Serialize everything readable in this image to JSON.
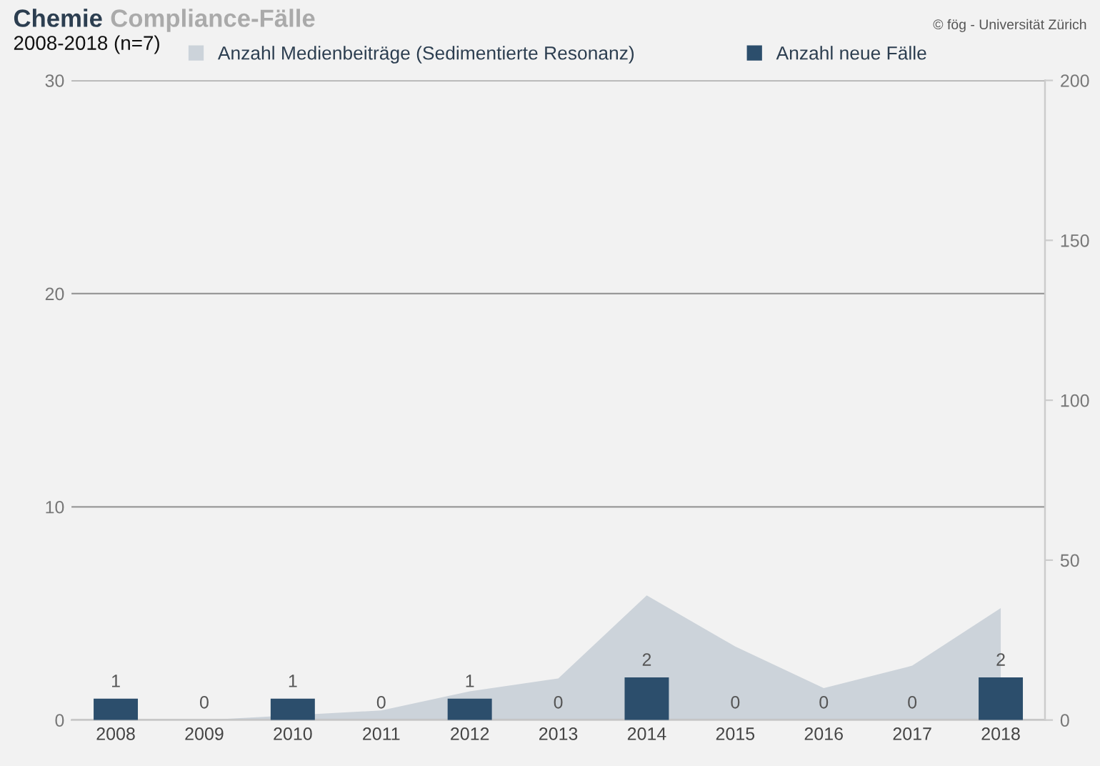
{
  "chart_data": {
    "type": "bar",
    "title": "Chemie Compliance-Fälle",
    "subtitle": "2008-2018 (n=7)",
    "annotations": [
      "© fög - Universität Zürich"
    ],
    "categories": [
      "2008",
      "2009",
      "2010",
      "2011",
      "2012",
      "2013",
      "2014",
      "2015",
      "2016",
      "2017",
      "2018"
    ],
    "series": [
      {
        "name": "Anzahl Medienbeiträge (Sedimentierte Resonanz)",
        "type": "area",
        "axis": "y2",
        "color": "#ccd3da",
        "values": [
          null,
          0,
          null,
          3,
          9,
          13,
          39,
          23,
          10,
          17,
          35
        ]
      },
      {
        "name": "Anzahl neue Fälle",
        "color": "#2c4e6c",
        "values": [
          1,
          0,
          1,
          0,
          1,
          0,
          2,
          0,
          0,
          0,
          2
        ],
        "value_labels": [
          "1",
          "0",
          "1",
          "0",
          "1",
          "0",
          "2",
          "0",
          "0",
          "0",
          "2"
        ]
      }
    ],
    "ylim": [
      0,
      30
    ],
    "yticks": [
      0,
      10,
      20,
      30
    ],
    "y2lim": [
      0,
      200
    ],
    "y2ticks": [
      0,
      50,
      100,
      150,
      200
    ],
    "grid": "y",
    "legend": "top"
  }
}
